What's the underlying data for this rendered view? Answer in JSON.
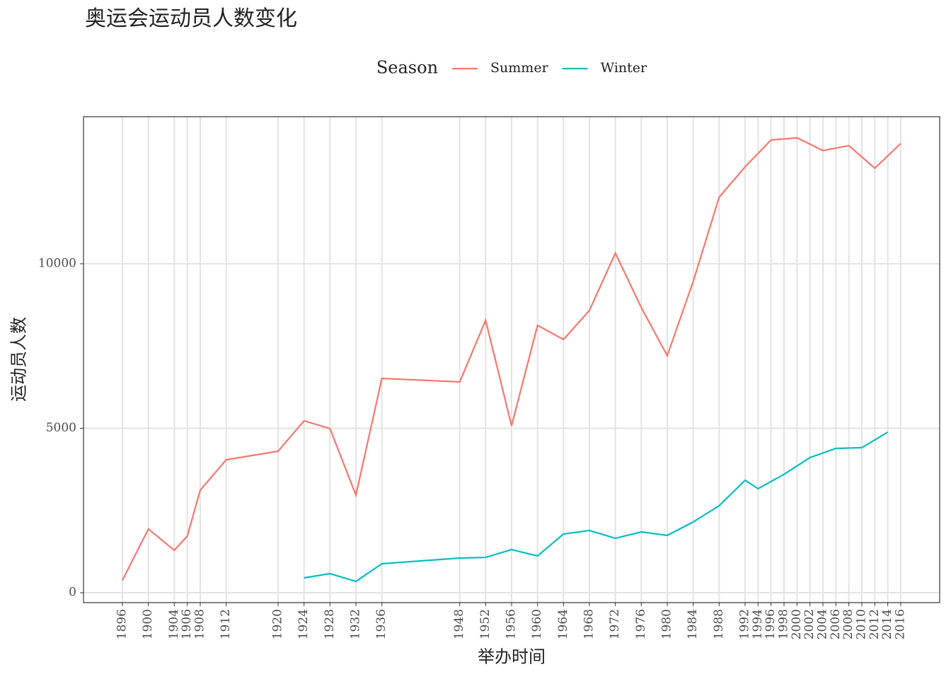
{
  "chart_data": {
    "type": "line",
    "title": "奥运会运动员人数变化",
    "x_label": "举办时间",
    "y_label": "运动员人数",
    "legend_title": "Season",
    "legend_position": "top",
    "grid": true,
    "xlim": [
      1890,
      2022
    ],
    "ylim": [
      -300,
      14470
    ],
    "xticks": [
      1896,
      1900,
      1904,
      1906,
      1908,
      1912,
      1920,
      1924,
      1928,
      1932,
      1936,
      1948,
      1952,
      1956,
      1960,
      1964,
      1968,
      1972,
      1976,
      1980,
      1984,
      1988,
      1992,
      1994,
      1996,
      1998,
      2000,
      2002,
      2004,
      2006,
      2008,
      2010,
      2012,
      2014,
      2016
    ],
    "yticks": [
      0,
      5000,
      10000
    ],
    "series": [
      {
        "name": "Summer",
        "color": "#F8766D",
        "x": [
          1896,
          1900,
          1904,
          1906,
          1908,
          1912,
          1920,
          1924,
          1928,
          1932,
          1936,
          1948,
          1952,
          1956,
          1960,
          1964,
          1968,
          1972,
          1976,
          1980,
          1984,
          1988,
          1992,
          1996,
          2000,
          2004,
          2008,
          2012,
          2016
        ],
        "values": [
          380,
          1935,
          1290,
          1720,
          3118,
          4043,
          4301,
          5226,
          4989,
          2968,
          6516,
          6409,
          8280,
          5075,
          8129,
          7699,
          8581,
          10323,
          8667,
          7204,
          9462,
          12022,
          12946,
          13763,
          13828,
          13441,
          13591,
          12903,
          13656
        ]
      },
      {
        "name": "Winter",
        "color": "#00BFC4",
        "x": [
          1924,
          1928,
          1932,
          1936,
          1948,
          1952,
          1956,
          1960,
          1964,
          1968,
          1972,
          1976,
          1980,
          1984,
          1988,
          1992,
          1994,
          1998,
          2002,
          2006,
          2010,
          2014
        ],
        "values": [
          452,
          581,
          344,
          882,
          1054,
          1075,
          1312,
          1118,
          1785,
          1892,
          1656,
          1849,
          1742,
          2151,
          2645,
          3419,
          3161,
          3600,
          4108,
          4387,
          4409,
          4882
        ]
      }
    ]
  }
}
